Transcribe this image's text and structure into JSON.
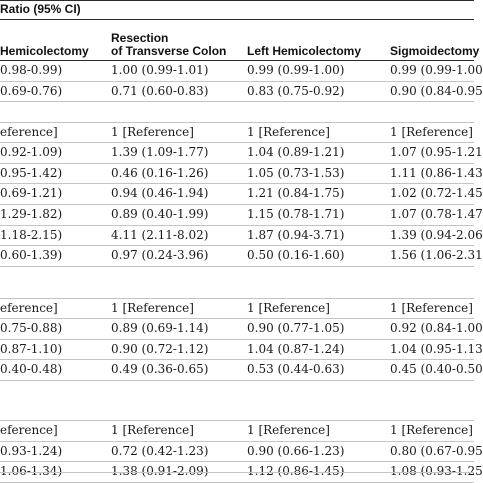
{
  "header": {
    "group_label": "Ratio (95% CI)",
    "columns": [
      {
        "line1": "",
        "line2": "Hemicolectomy"
      },
      {
        "line1": "Resection",
        "line2": "of Transverse Colon"
      },
      {
        "line1": "",
        "line2": "Left Hemicolectomy"
      },
      {
        "line1": "",
        "line2": "Sigmoidectomy"
      }
    ]
  },
  "sections": [
    {
      "rows": [
        [
          "0.98-0.99)",
          "1.00 (0.99-1.01)",
          "0.99 (0.99-1.00)",
          "0.99 (0.99-1.00"
        ],
        [
          "0.69-0.76)",
          "0.71 (0.60-0.83)",
          "0.83 (0.75-0.92)",
          "0.90 (0.84-0.95"
        ]
      ]
    },
    {
      "rows": [
        [
          "eference]",
          "1 [Reference]",
          "1 [Reference]",
          "1 [Reference]"
        ],
        [
          "0.92-1.09)",
          "1.39 (1.09-1.77)",
          "1.04 (0.89-1.21)",
          "1.07 (0.95-1.21"
        ],
        [
          "0.95-1.42)",
          "0.46 (0.16-1.26)",
          "1.05 (0.73-1.53)",
          "1.11 (0.86-1.43"
        ],
        [
          "0.69-1.21)",
          "0.94 (0.46-1.94)",
          "1.21 (0.84-1.75)",
          "1.02 (0.72-1.45"
        ],
        [
          "1.29-1.82)",
          "0.89 (0.40-1.99)",
          "1.15 (0.78-1.71)",
          "1.07 (0.78-1.47"
        ],
        [
          "1.18-2.15)",
          "4.11 (2.11-8.02)",
          "1.87 (0.94-3.71)",
          "1.39 (0.94-2.06"
        ],
        [
          "0.60-1.39)",
          "0.97 (0.24-3.96)",
          "0.50 (0.16-1.60)",
          "1.56 (1.06-2.31"
        ]
      ]
    },
    {
      "rows": [
        [
          "eference]",
          "1 [Reference]",
          "1 [Reference]",
          "1 [Reference]"
        ],
        [
          "0.75-0.88)",
          "0.89 (0.69-1.14)",
          "0.90 (0.77-1.05)",
          "0.92 (0.84-1.00"
        ],
        [
          "0.87-1.10)",
          "0.90 (0.72-1.12)",
          "1.04 (0.87-1.24)",
          "1.04 (0.95-1.13"
        ],
        [
          "0.40-0.48)",
          "0.49 (0.36-0.65)",
          "0.53 (0.44-0.63)",
          "0.45 (0.40-0.50"
        ]
      ]
    },
    {
      "rows": [
        [
          "eference]",
          "1 [Reference]",
          "1 [Reference]",
          "1 [Reference]"
        ],
        [
          "0.93-1.24)",
          "0.72 (0.42-1.23)",
          "0.90 (0.66-1.23)",
          "0.80 (0.67-0.95"
        ],
        [
          "1.06-1.34)",
          "1.38 (0.91-2.09)",
          "1.12 (0.86-1.45)",
          "1.08 (0.93-1.25"
        ]
      ]
    }
  ]
}
